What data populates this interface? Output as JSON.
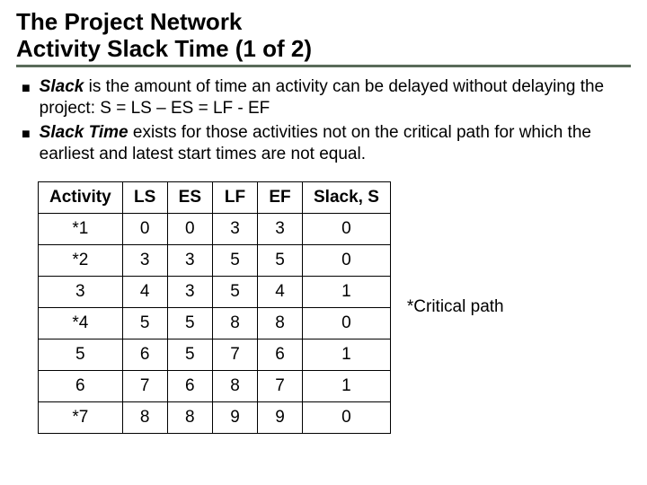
{
  "title": {
    "line1": "The Project Network",
    "line2": "Activity Slack Time (1 of 2)"
  },
  "bullets": [
    {
      "bold": "Slack",
      "rest": " is the amount of time an activity can be delayed without delaying the project: S = LS – ES = LF - EF"
    },
    {
      "bold": "Slack Time",
      "rest": " exists for those activities not on the critical path for which the earliest and latest start times are not equal."
    }
  ],
  "table": {
    "columns": [
      "Activity",
      "LS",
      "ES",
      "LF",
      "EF",
      "Slack, S"
    ],
    "rows": [
      [
        "*1",
        "0",
        "0",
        "3",
        "3",
        "0"
      ],
      [
        "*2",
        "3",
        "3",
        "5",
        "5",
        "0"
      ],
      [
        "3",
        "4",
        "3",
        "5",
        "4",
        "1"
      ],
      [
        "*4",
        "5",
        "5",
        "8",
        "8",
        "0"
      ],
      [
        "5",
        "6",
        "5",
        "7",
        "6",
        "1"
      ],
      [
        "6",
        "7",
        "6",
        "8",
        "7",
        "1"
      ],
      [
        "*7",
        "8",
        "8",
        "9",
        "9",
        "0"
      ]
    ]
  },
  "footnote": "*Critical path"
}
